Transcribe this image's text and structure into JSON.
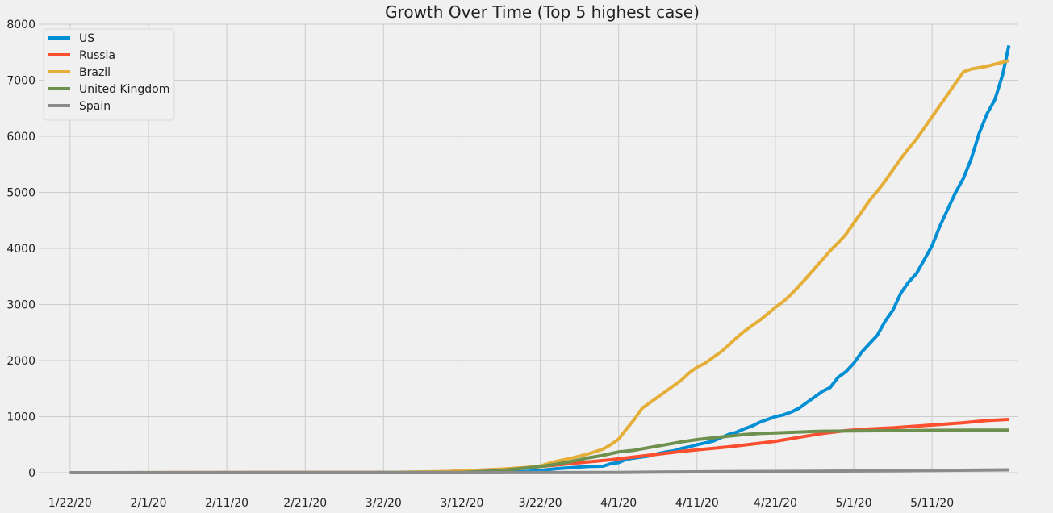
{
  "chart_data": {
    "type": "line",
    "title": "Growth Over Time (Top 5 highest case)",
    "xlabel": "",
    "ylabel": "",
    "ylim": [
      0,
      8000
    ],
    "x_tick_labels": [
      "1/22/20",
      "2/1/20",
      "2/11/20",
      "2/21/20",
      "3/2/20",
      "3/12/20",
      "3/22/20",
      "4/1/20",
      "4/11/20",
      "4/21/20",
      "5/1/20",
      "5/11/20"
    ],
    "x_tick_days": [
      0,
      10,
      20,
      30,
      40,
      50,
      60,
      70,
      80,
      90,
      100,
      110
    ],
    "xlim": [
      -4,
      121
    ],
    "y_ticks": [
      0,
      1000,
      2000,
      3000,
      4000,
      5000,
      6000,
      7000,
      8000
    ],
    "grid": true,
    "legend_position": "top-left",
    "series": [
      {
        "name": "US",
        "color": "#008fd5",
        "points": [
          [
            0,
            0
          ],
          [
            40,
            2
          ],
          [
            55,
            5
          ],
          [
            58,
            20
          ],
          [
            60,
            40
          ],
          [
            62,
            70
          ],
          [
            64,
            90
          ],
          [
            66,
            110
          ],
          [
            68,
            115
          ],
          [
            69,
            160
          ],
          [
            70,
            180
          ],
          [
            71,
            240
          ],
          [
            72,
            260
          ],
          [
            73,
            280
          ],
          [
            74,
            300
          ],
          [
            75,
            340
          ],
          [
            76,
            370
          ],
          [
            77,
            390
          ],
          [
            78,
            430
          ],
          [
            79,
            460
          ],
          [
            80,
            500
          ],
          [
            81,
            530
          ],
          [
            82,
            560
          ],
          [
            83,
            620
          ],
          [
            84,
            680
          ],
          [
            85,
            720
          ],
          [
            86,
            780
          ],
          [
            87,
            830
          ],
          [
            88,
            900
          ],
          [
            89,
            950
          ],
          [
            90,
            1000
          ],
          [
            91,
            1030
          ],
          [
            92,
            1080
          ],
          [
            93,
            1150
          ],
          [
            94,
            1250
          ],
          [
            95,
            1350
          ],
          [
            96,
            1450
          ],
          [
            97,
            1520
          ],
          [
            98,
            1700
          ],
          [
            99,
            1800
          ],
          [
            100,
            1950
          ],
          [
            101,
            2150
          ],
          [
            102,
            2300
          ],
          [
            103,
            2450
          ],
          [
            104,
            2700
          ],
          [
            105,
            2900
          ],
          [
            106,
            3200
          ],
          [
            107,
            3400
          ],
          [
            108,
            3550
          ],
          [
            109,
            3800
          ],
          [
            110,
            4050
          ],
          [
            111,
            4400
          ],
          [
            112,
            4700
          ],
          [
            113,
            5000
          ],
          [
            114,
            5250
          ],
          [
            115,
            5600
          ],
          [
            116,
            6050
          ],
          [
            117,
            6400
          ],
          [
            118,
            6650
          ],
          [
            119,
            7100
          ],
          [
            119.8,
            7620
          ]
        ]
      },
      {
        "name": "Russia",
        "color": "#fc4f30",
        "points": [
          [
            0,
            0
          ],
          [
            45,
            5
          ],
          [
            50,
            30
          ],
          [
            55,
            60
          ],
          [
            60,
            110
          ],
          [
            63,
            150
          ],
          [
            66,
            190
          ],
          [
            69,
            230
          ],
          [
            72,
            280
          ],
          [
            75,
            330
          ],
          [
            78,
            380
          ],
          [
            81,
            420
          ],
          [
            84,
            460
          ],
          [
            87,
            510
          ],
          [
            90,
            560
          ],
          [
            93,
            630
          ],
          [
            96,
            700
          ],
          [
            99,
            750
          ],
          [
            102,
            780
          ],
          [
            105,
            800
          ],
          [
            108,
            830
          ],
          [
            111,
            860
          ],
          [
            114,
            890
          ],
          [
            117,
            930
          ],
          [
            119.8,
            950
          ]
        ]
      },
      {
        "name": "Brazil",
        "color": "#e5ae38",
        "points": [
          [
            0,
            0
          ],
          [
            40,
            5
          ],
          [
            48,
            20
          ],
          [
            52,
            40
          ],
          [
            55,
            60
          ],
          [
            58,
            90
          ],
          [
            60,
            120
          ],
          [
            62,
            200
          ],
          [
            64,
            260
          ],
          [
            66,
            330
          ],
          [
            68,
            420
          ],
          [
            69,
            500
          ],
          [
            70,
            600
          ],
          [
            71,
            780
          ],
          [
            72,
            950
          ],
          [
            73,
            1150
          ],
          [
            74,
            1250
          ],
          [
            75,
            1350
          ],
          [
            76,
            1450
          ],
          [
            77,
            1550
          ],
          [
            78,
            1650
          ],
          [
            79,
            1780
          ],
          [
            80,
            1880
          ],
          [
            81,
            1950
          ],
          [
            82,
            2050
          ],
          [
            83,
            2150
          ],
          [
            84,
            2270
          ],
          [
            85,
            2400
          ],
          [
            86,
            2520
          ],
          [
            87,
            2620
          ],
          [
            88,
            2720
          ],
          [
            89,
            2830
          ],
          [
            90,
            2950
          ],
          [
            91,
            3050
          ],
          [
            92,
            3180
          ],
          [
            93,
            3330
          ],
          [
            94,
            3480
          ],
          [
            95,
            3640
          ],
          [
            96,
            3800
          ],
          [
            97,
            3960
          ],
          [
            98,
            4100
          ],
          [
            99,
            4250
          ],
          [
            100,
            4450
          ],
          [
            101,
            4650
          ],
          [
            102,
            4850
          ],
          [
            103,
            5020
          ],
          [
            104,
            5200
          ],
          [
            105,
            5400
          ],
          [
            106,
            5600
          ],
          [
            107,
            5780
          ],
          [
            108,
            5950
          ],
          [
            109,
            6150
          ],
          [
            110,
            6350
          ],
          [
            111,
            6550
          ],
          [
            112,
            6750
          ],
          [
            113,
            6950
          ],
          [
            114,
            7150
          ],
          [
            115,
            7200
          ],
          [
            117,
            7250
          ],
          [
            119.8,
            7350
          ]
        ]
      },
      {
        "name": "United Kingdom",
        "color": "#6d904f",
        "points": [
          [
            0,
            0
          ],
          [
            50,
            5
          ],
          [
            55,
            40
          ],
          [
            58,
            80
          ],
          [
            60,
            110
          ],
          [
            62,
            150
          ],
          [
            64,
            200
          ],
          [
            66,
            260
          ],
          [
            68,
            310
          ],
          [
            70,
            370
          ],
          [
            72,
            400
          ],
          [
            74,
            450
          ],
          [
            76,
            500
          ],
          [
            78,
            550
          ],
          [
            80,
            590
          ],
          [
            82,
            620
          ],
          [
            84,
            650
          ],
          [
            86,
            680
          ],
          [
            88,
            700
          ],
          [
            90,
            710
          ],
          [
            92,
            720
          ],
          [
            94,
            730
          ],
          [
            96,
            740
          ],
          [
            100,
            745
          ],
          [
            105,
            750
          ],
          [
            110,
            755
          ],
          [
            115,
            760
          ],
          [
            119.8,
            760
          ]
        ]
      },
      {
        "name": "Spain",
        "color": "#8b8b8b",
        "points": [
          [
            0,
            0
          ],
          [
            60,
            2
          ],
          [
            70,
            5
          ],
          [
            75,
            10
          ],
          [
            80,
            15
          ],
          [
            85,
            20
          ],
          [
            90,
            22
          ],
          [
            95,
            25
          ],
          [
            100,
            30
          ],
          [
            105,
            35
          ],
          [
            110,
            40
          ],
          [
            115,
            45
          ],
          [
            119.8,
            50
          ]
        ]
      }
    ]
  }
}
